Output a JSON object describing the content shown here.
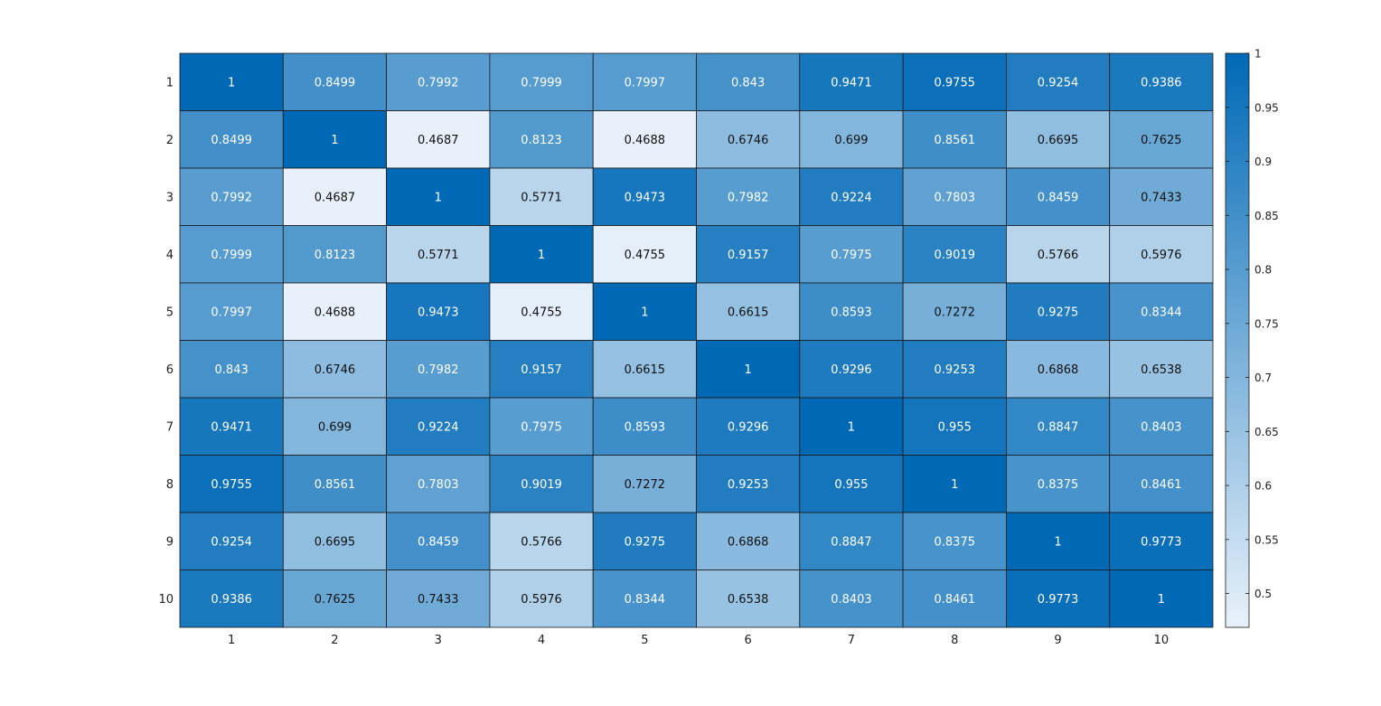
{
  "chart_data": {
    "type": "heatmap",
    "title": "",
    "xlabel": "",
    "ylabel": "",
    "x_labels": [
      "1",
      "2",
      "3",
      "4",
      "5",
      "6",
      "7",
      "8",
      "9",
      "10"
    ],
    "y_labels": [
      "1",
      "2",
      "3",
      "4",
      "5",
      "6",
      "7",
      "8",
      "9",
      "10"
    ],
    "values": [
      [
        1,
        0.8499,
        0.7992,
        0.7999,
        0.7997,
        0.843,
        0.9471,
        0.9755,
        0.9254,
        0.9386
      ],
      [
        0.8499,
        1,
        0.4687,
        0.8123,
        0.4688,
        0.6746,
        0.699,
        0.8561,
        0.6695,
        0.7625
      ],
      [
        0.7992,
        0.4687,
        1,
        0.5771,
        0.9473,
        0.7982,
        0.9224,
        0.7803,
        0.8459,
        0.7433
      ],
      [
        0.7999,
        0.8123,
        0.5771,
        1,
        0.4755,
        0.9157,
        0.7975,
        0.9019,
        0.5766,
        0.5976
      ],
      [
        0.7997,
        0.4688,
        0.9473,
        0.4755,
        1,
        0.6615,
        0.8593,
        0.7272,
        0.9275,
        0.8344
      ],
      [
        0.843,
        0.6746,
        0.7982,
        0.9157,
        0.6615,
        1,
        0.9296,
        0.9253,
        0.6868,
        0.6538
      ],
      [
        0.9471,
        0.699,
        0.9224,
        0.7975,
        0.8593,
        0.9296,
        1,
        0.955,
        0.8847,
        0.8403
      ],
      [
        0.9755,
        0.8561,
        0.7803,
        0.9019,
        0.7272,
        0.9253,
        0.955,
        1,
        0.8375,
        0.8461
      ],
      [
        0.9254,
        0.6695,
        0.8459,
        0.5766,
        0.9275,
        0.6868,
        0.8847,
        0.8375,
        1,
        0.9773
      ],
      [
        0.9386,
        0.7625,
        0.7433,
        0.5976,
        0.8344,
        0.6538,
        0.8403,
        0.8461,
        0.9773,
        1
      ]
    ],
    "cell_labels": [
      [
        "1",
        "0.8499",
        "0.7992",
        "0.7999",
        "0.7997",
        "0.843",
        "0.9471",
        "0.9755",
        "0.9254",
        "0.9386"
      ],
      [
        "0.8499",
        "1",
        "0.4687",
        "0.8123",
        "0.4688",
        "0.6746",
        "0.699",
        "0.8561",
        "0.6695",
        "0.7625"
      ],
      [
        "0.7992",
        "0.4687",
        "1",
        "0.5771",
        "0.9473",
        "0.7982",
        "0.9224",
        "0.7803",
        "0.8459",
        "0.7433"
      ],
      [
        "0.7999",
        "0.8123",
        "0.5771",
        "1",
        "0.4755",
        "0.9157",
        "0.7975",
        "0.9019",
        "0.5766",
        "0.5976"
      ],
      [
        "0.7997",
        "0.4688",
        "0.9473",
        "0.4755",
        "1",
        "0.6615",
        "0.8593",
        "0.7272",
        "0.9275",
        "0.8344"
      ],
      [
        "0.843",
        "0.6746",
        "0.7982",
        "0.9157",
        "0.6615",
        "1",
        "0.9296",
        "0.9253",
        "0.6868",
        "0.6538"
      ],
      [
        "0.9471",
        "0.699",
        "0.9224",
        "0.7975",
        "0.8593",
        "0.9296",
        "1",
        "0.955",
        "0.8847",
        "0.8403"
      ],
      [
        "0.9755",
        "0.8561",
        "0.7803",
        "0.9019",
        "0.7272",
        "0.9253",
        "0.955",
        "1",
        "0.8375",
        "0.8461"
      ],
      [
        "0.9254",
        "0.6695",
        "0.8459",
        "0.5766",
        "0.9275",
        "0.6868",
        "0.8847",
        "0.8375",
        "1",
        "0.9773"
      ],
      [
        "0.9386",
        "0.7625",
        "0.7433",
        "0.5976",
        "0.8344",
        "0.6538",
        "0.8403",
        "0.8461",
        "0.9773",
        "1"
      ]
    ],
    "colorbar": {
      "range": [
        0.4687,
        1
      ],
      "ticks": [
        0.5,
        0.55,
        0.6,
        0.65,
        0.7,
        0.75,
        0.8,
        0.85,
        0.9,
        0.95,
        1
      ],
      "tick_labels": [
        "0.5",
        "0.55",
        "0.6",
        "0.65",
        "0.7",
        "0.75",
        "0.8",
        "0.85",
        "0.9",
        "0.95",
        "1"
      ]
    },
    "colormap": {
      "low": "#e8f1fa",
      "high": "#0069b6"
    },
    "grid": true,
    "legend": "right"
  }
}
